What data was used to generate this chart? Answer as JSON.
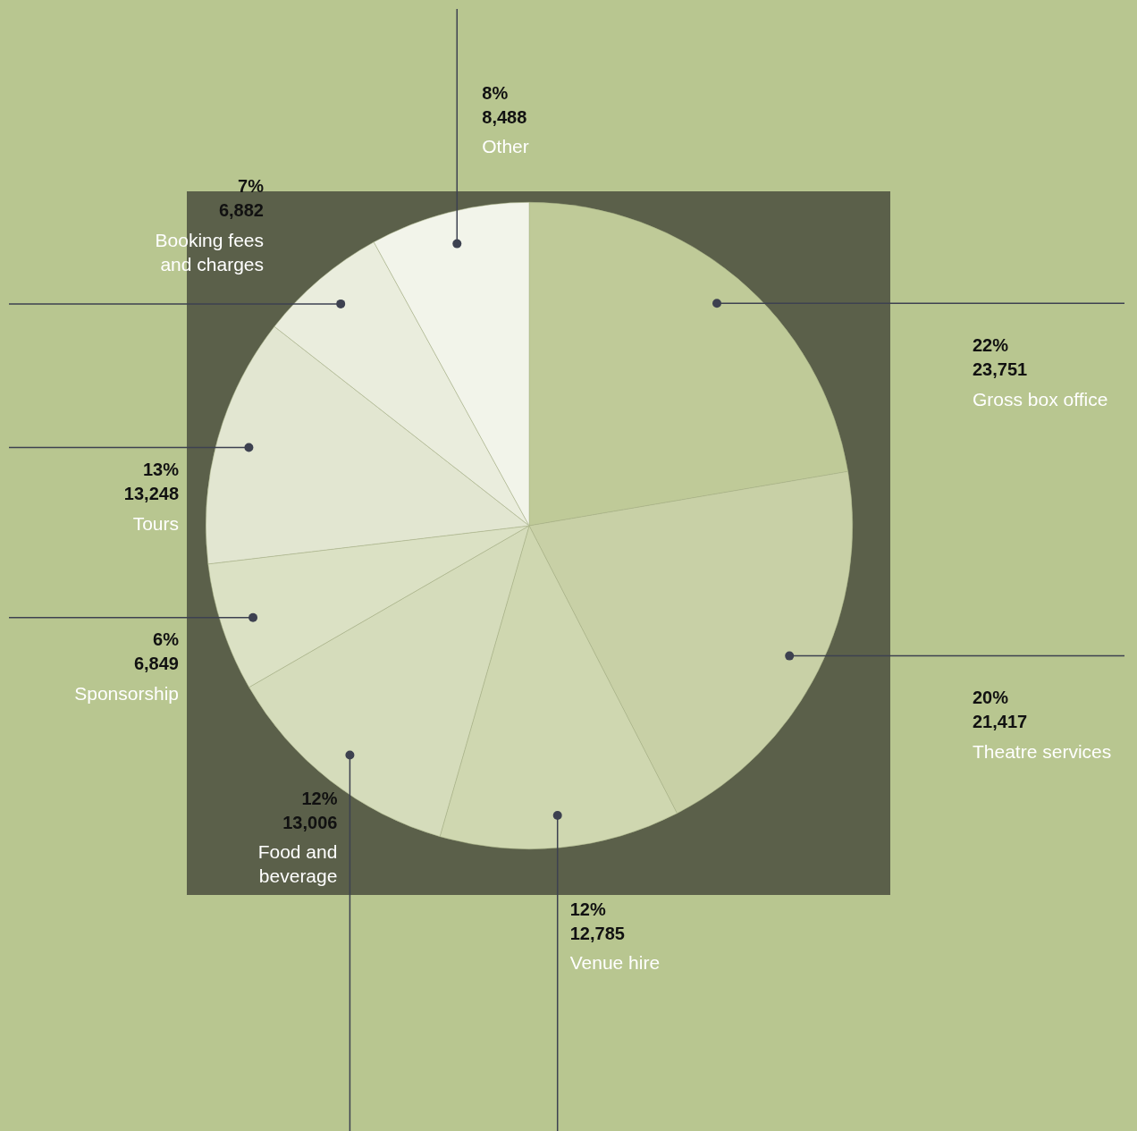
{
  "chart_data": {
    "type": "pie",
    "categories": [
      "Gross box office",
      "Theatre services",
      "Venue hire",
      "Food and beverage",
      "Sponsorship",
      "Tours",
      "Booking fees and charges",
      "Other"
    ],
    "values": [
      23751,
      21417,
      12785,
      13006,
      6849,
      13248,
      6882,
      8488
    ],
    "value_labels": [
      "22%\n23,751",
      "20%\n21,417",
      "12%\n12,785",
      "12%\n13,006",
      "6%\n6,849",
      "13%\n13,248",
      "7%\n6,882",
      "8%\n8,488"
    ],
    "colors": [
      "#bfca98",
      "#c8d0a6",
      "#cfd7b0",
      "#d5dcbb",
      "#dbe1c4",
      "#e2e6d1",
      "#eaeddd",
      "#f2f4ea"
    ]
  }
}
